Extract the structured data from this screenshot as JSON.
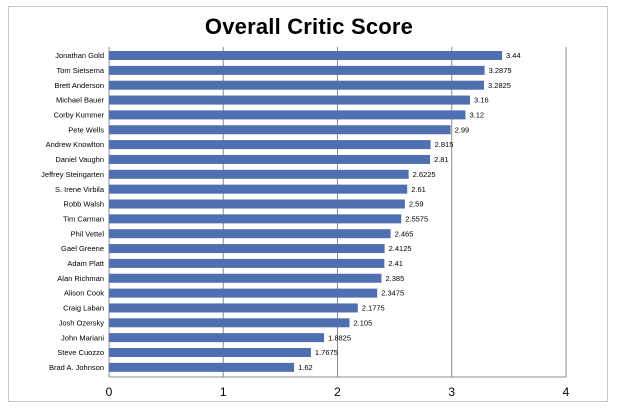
{
  "chart_data": {
    "type": "bar",
    "orientation": "horizontal",
    "title": "Overall Critic Score",
    "xlabel": "",
    "ylabel": "",
    "xlim": [
      0,
      4
    ],
    "x_ticks": [
      0,
      1,
      2,
      3,
      4
    ],
    "grid": true,
    "bar_color": "#4f6fb0",
    "categories": [
      "Jonathan Gold",
      "Tom Sietsema",
      "Brett Anderson",
      "Michael Bauer",
      "Corby Kummer",
      "Pete Wells",
      "Andrew Knowlton",
      "Daniel Vaughn",
      "Jeffrey Steingarten",
      "S. Irene Virbila",
      "Robb Walsh",
      "Tim Carman",
      "Phil Vettel",
      "Gael Greene",
      "Adam Platt",
      "Alan Richman",
      "Alison Cook",
      "Craig Laban",
      "Josh Ozersky",
      "John Mariani",
      "Steve Cuozzo",
      "Brad A. Johnson"
    ],
    "values": [
      3.44,
      3.2875,
      3.2825,
      3.16,
      3.12,
      2.99,
      2.815,
      2.81,
      2.6225,
      2.61,
      2.59,
      2.5575,
      2.465,
      2.4125,
      2.41,
      2.385,
      2.3475,
      2.1775,
      2.105,
      1.8825,
      1.7675,
      1.62
    ],
    "value_labels": [
      "3.44",
      "3.2875",
      "3.2825",
      "3.16",
      "3.12",
      "2.99",
      "2.815",
      "2.81",
      "2.6225",
      "2.61",
      "2.59",
      "2.5575",
      "2.465",
      "2.4125",
      "2.41",
      "2.385",
      "2.3475",
      "2.1775",
      "2.105",
      "1.8825",
      "1.7675",
      "1.62"
    ]
  }
}
